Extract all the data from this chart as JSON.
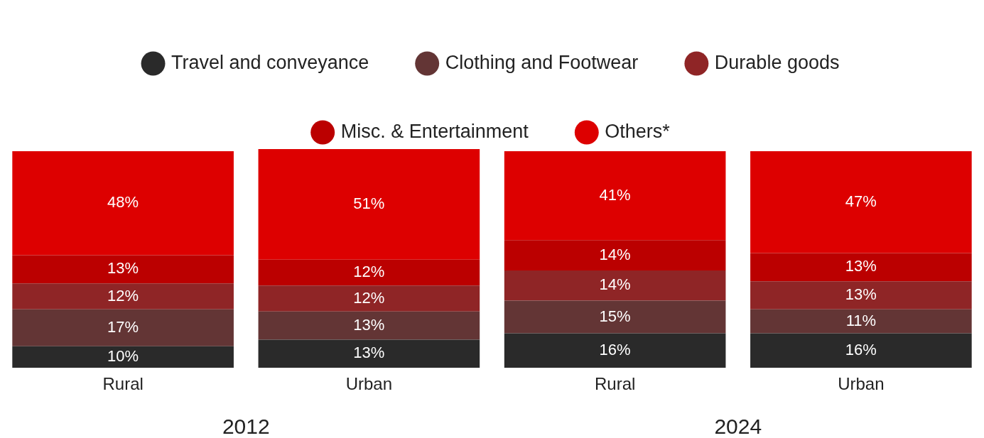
{
  "chart_data": {
    "type": "bar",
    "stacked": true,
    "categories": [
      "Rural",
      "Urban",
      "Rural",
      "Urban"
    ],
    "series": [
      {
        "name": "Travel and conveyance",
        "color": "#2a2a2a",
        "values": [
          10,
          13,
          16,
          16
        ],
        "value_labels": [
          "10%",
          "13%",
          "16%",
          "16%"
        ]
      },
      {
        "name": "Clothing and Footwear",
        "color": "#633535",
        "values": [
          17,
          13,
          15,
          11
        ],
        "value_labels": [
          "17%",
          "13%",
          "15%",
          "11%"
        ]
      },
      {
        "name": "Durable goods",
        "color": "#8f2526",
        "values": [
          12,
          12,
          14,
          13
        ],
        "value_labels": [
          "12%",
          "12%",
          "14%",
          "13%"
        ]
      },
      {
        "name": "Misc. & Entertainment",
        "color": "#bb0000",
        "values": [
          13,
          12,
          14,
          13
        ],
        "value_labels": [
          "13%",
          "12%",
          "14%",
          "13%"
        ]
      },
      {
        "name": "Others*",
        "color": "#dd0000",
        "values": [
          48,
          51,
          41,
          47
        ],
        "value_labels": [
          "48%",
          "51%",
          "41%",
          "47%"
        ]
      }
    ],
    "tick_labels": "x",
    "legend": "top",
    "annotations": [
      "2012",
      "2024"
    ]
  }
}
